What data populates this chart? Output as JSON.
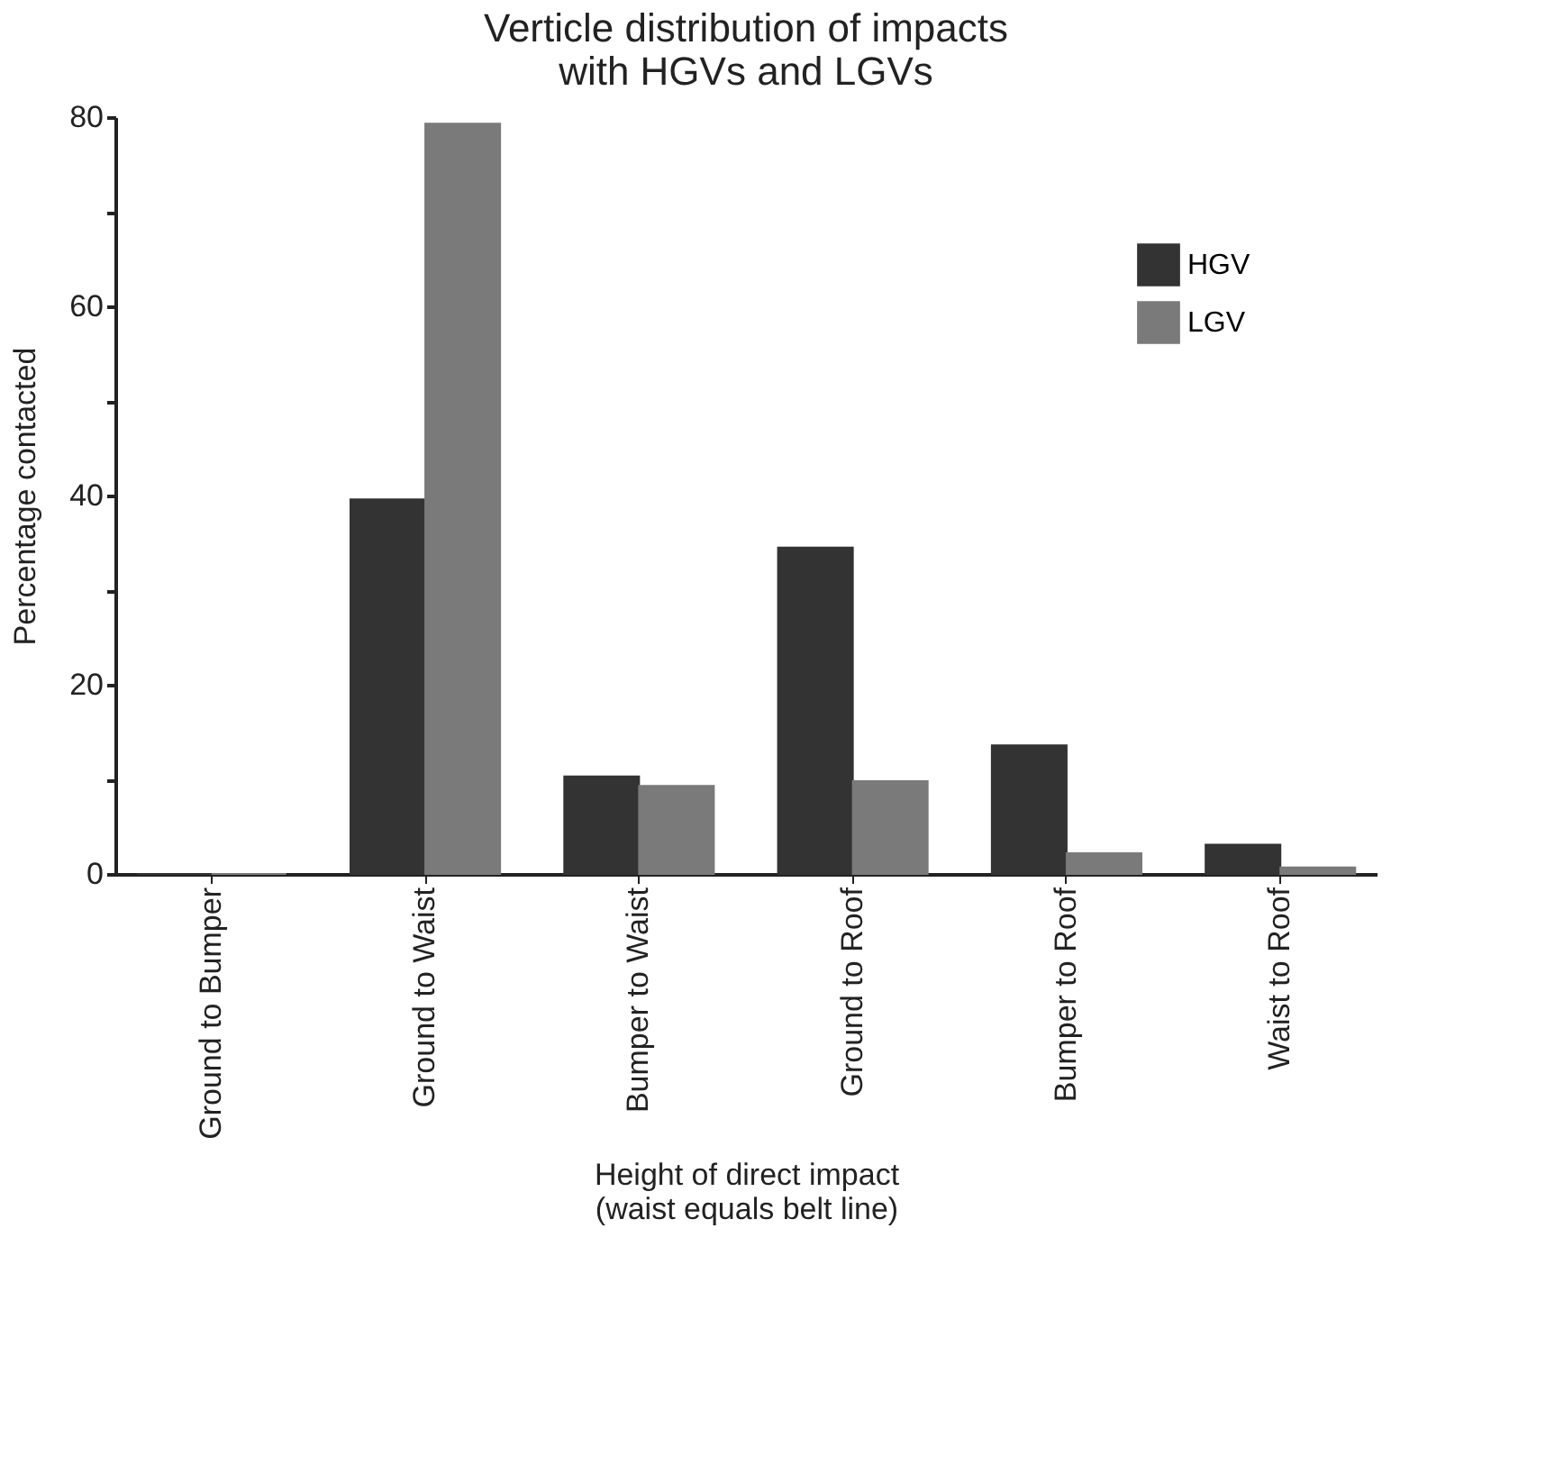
{
  "chart_data": {
    "type": "bar",
    "title": "Verticle distribution of impacts\nwith HGVs and LGVs",
    "xlabel": "Height of direct impact\n(waist equals belt line)",
    "ylabel": "Percentage contacted",
    "categories": [
      "Ground to Bumper",
      "Ground to Waist",
      "Bumper to Waist",
      "Ground to Roof",
      "Bumper to Roof",
      "Waist to Roof"
    ],
    "series": [
      {
        "name": "HGV",
        "color": "#333333",
        "values": [
          0,
          39.6,
          10.3,
          34.5,
          13.6,
          3.1
        ]
      },
      {
        "name": "LGV",
        "color": "#7a7a7a",
        "values": [
          0,
          79.3,
          9.3,
          9.8,
          2.2,
          0.7
        ]
      }
    ],
    "ylim": [
      0,
      80
    ],
    "yticks": [
      0,
      {
        "value": 10,
        "label": null
      },
      20,
      {
        "value": 30,
        "label": null
      },
      40,
      {
        "value": 50,
        "label": null
      },
      60,
      {
        "value": 70,
        "label": null
      },
      80
    ],
    "grid": false,
    "legend": "top right"
  }
}
